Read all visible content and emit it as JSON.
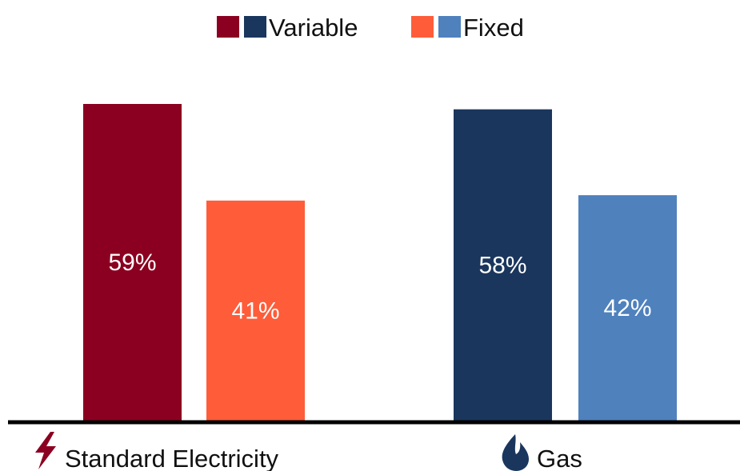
{
  "chart_data": {
    "type": "bar",
    "categories": [
      "Standard Electricity",
      "Gas"
    ],
    "category_icons": [
      "lightning-bolt-icon",
      "gas-flame-icon"
    ],
    "series": [
      {
        "name": "Variable",
        "values": [
          59,
          58
        ]
      },
      {
        "name": "Fixed",
        "values": [
          41,
          42
        ]
      }
    ],
    "value_format": "percent",
    "colors": {
      "Standard Electricity": {
        "Variable": "#8b0020",
        "Fixed": "#ff5c3a"
      },
      "Gas": {
        "Variable": "#1a365d",
        "Fixed": "#4f81bd"
      }
    },
    "legend": {
      "position": "top-center",
      "entries": [
        {
          "label": "Variable",
          "swatches": [
            "#8b0020",
            "#1a365d"
          ]
        },
        {
          "label": "Fixed",
          "swatches": [
            "#ff5c3a",
            "#4f81bd"
          ]
        }
      ]
    },
    "ylim": [
      0,
      59
    ],
    "grid": false,
    "title": "",
    "xlabel": "",
    "ylabel": ""
  }
}
